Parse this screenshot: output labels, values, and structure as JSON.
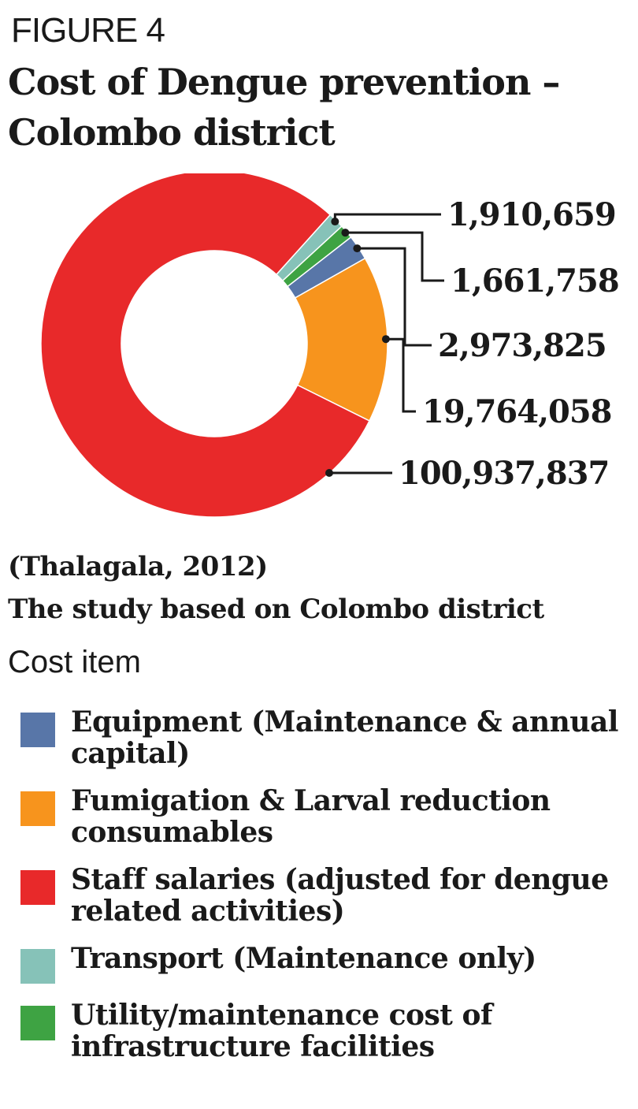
{
  "figure_label": "FIGURE 4",
  "source_line1": "(Thalagala, 2012)",
  "source_line2": "The study based on Colombo district",
  "chart_data": {
    "type": "pie",
    "style": "donut",
    "title": "Cost of Dengue prevention – Colombo district",
    "legend_title": "Cost item",
    "legend_placement": "bottom",
    "series": [
      {
        "name": "Staff salaries (adjusted for dengue related activities)",
        "value": 100937837,
        "label": "100,937,837",
        "color": "#e8292a"
      },
      {
        "name": "Fumigation & Larval reduction consumables",
        "value": 19764058,
        "label": "19,764,058",
        "color": "#f7941d"
      },
      {
        "name": "Equipment (Maintenance & annual capital)",
        "value": 2973825,
        "label": "2,973,825",
        "color": "#5876a8"
      },
      {
        "name": "Utility/maintenance cost of infrastructure facilities",
        "value": 1661758,
        "label": "1,661,758",
        "color": "#3ea343"
      },
      {
        "name": "Transport (Maintenance only)",
        "value": 1910659,
        "label": "1,910,659",
        "color": "#86c2b8"
      }
    ],
    "legend_order": [
      2,
      1,
      0,
      4,
      3
    ]
  }
}
